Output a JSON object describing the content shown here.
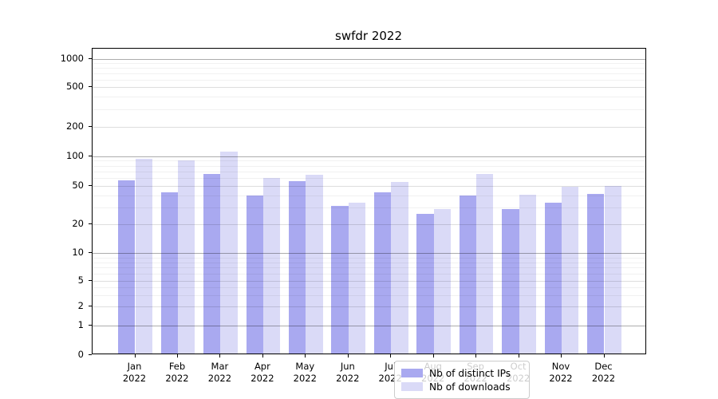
{
  "title": "swfdr 2022",
  "chart_data": {
    "type": "bar",
    "title": "swfdr 2022",
    "x_labels": [
      {
        "month": "Jan",
        "year": "2022"
      },
      {
        "month": "Feb",
        "year": "2022"
      },
      {
        "month": "Mar",
        "year": "2022"
      },
      {
        "month": "Apr",
        "year": "2022"
      },
      {
        "month": "May",
        "year": "2022"
      },
      {
        "month": "Jun",
        "year": "2022"
      },
      {
        "month": "Jul",
        "year": "2022"
      },
      {
        "month": "Aug",
        "year": "2022"
      },
      {
        "month": "Sep",
        "year": "2022"
      },
      {
        "month": "Oct",
        "year": "2022"
      },
      {
        "month": "Nov",
        "year": "2022"
      },
      {
        "month": "Dec",
        "year": "2022"
      }
    ],
    "series": [
      {
        "name": "Nb of distinct IPs",
        "color": "#a9a9f0",
        "values": [
          55,
          41,
          64,
          38,
          54,
          30,
          41,
          25,
          38,
          28,
          32,
          40
        ]
      },
      {
        "name": "Nb of downloads",
        "color": "#dadaf7",
        "values": [
          91,
          87,
          108,
          58,
          62,
          32,
          53,
          28,
          64,
          39,
          47,
          48
        ]
      }
    ],
    "y_ticks": [
      0,
      1,
      2,
      5,
      10,
      20,
      50,
      100,
      200,
      500,
      1000
    ],
    "y_scale": "symlog",
    "ylim": [
      0,
      1400
    ],
    "grid": true,
    "legend_position": "lower center"
  }
}
